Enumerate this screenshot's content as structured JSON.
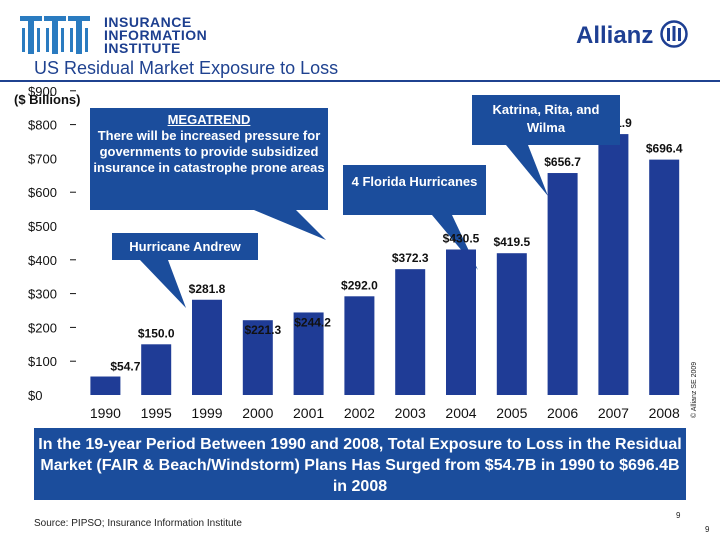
{
  "header": {
    "org_name_lines": [
      "INSURANCE",
      "INFORMATION",
      "INSTITUTE"
    ],
    "brand": "Allianz",
    "brand_mark": "eagle-emblem-icon",
    "title": "US Residual Market Exposure to Loss",
    "units": "($ Billions)"
  },
  "callouts": {
    "megatrend_heading": "MEGATREND",
    "megatrend_body": "There will be increased pressure for governments to provide subsidized insurance in catastrophe prone areas",
    "katrina": "Katrina, Rita, and Wilma",
    "florida": "4 Florida Hurricanes",
    "andrew": "Hurricane Andrew"
  },
  "banner": "In the 19-year Period Between 1990 and 2008, Total Exposure to Loss in the Residual Market (FAIR & Beach/Windstorm) Plans Has Surged from $54.7B in 1990 to $696.4B in 2008",
  "source": "Source: PIPSO; Insurance Information Institute",
  "copyright": "© Allianz SE 2009",
  "page_number": "9",
  "page_number_2": "9",
  "colors": {
    "bar": "#1f3c96",
    "callout": "#1b4d9c",
    "brand_blue": "#1e3f93"
  },
  "chart_data": {
    "type": "bar",
    "categories": [
      "1990",
      "1995",
      "1999",
      "2000",
      "2001",
      "2002",
      "2003",
      "2004",
      "2005",
      "2006",
      "2007",
      "2008"
    ],
    "values": [
      54.7,
      150.0,
      281.8,
      221.3,
      244.2,
      292.0,
      372.3,
      430.5,
      419.5,
      656.7,
      771.9,
      696.4
    ],
    "data_labels": [
      "$54.7",
      "$150.0",
      "$281.8",
      "$221.3",
      "$244.2",
      "$292.0",
      "$372.3",
      "$430.5",
      "$419.5",
      "$656.7",
      "$771.9",
      "$696.4"
    ],
    "y_ticks": [
      {
        "value": 0,
        "label": "$0"
      },
      {
        "value": 100,
        "label": "$100"
      },
      {
        "value": 200,
        "label": "$200"
      },
      {
        "value": 300,
        "label": "$300"
      },
      {
        "value": 400,
        "label": "$400"
      },
      {
        "value": 500,
        "label": "$500"
      },
      {
        "value": 600,
        "label": "$600"
      },
      {
        "value": 700,
        "label": "$700"
      },
      {
        "value": 800,
        "label": "$800"
      },
      {
        "value": 900,
        "label": "$900"
      }
    ],
    "ylim": [
      0,
      900
    ],
    "title": "US Residual Market Exposure to Loss",
    "ylabel": "($ Billions)",
    "xlabel": "",
    "grid": false,
    "legend": "none"
  }
}
